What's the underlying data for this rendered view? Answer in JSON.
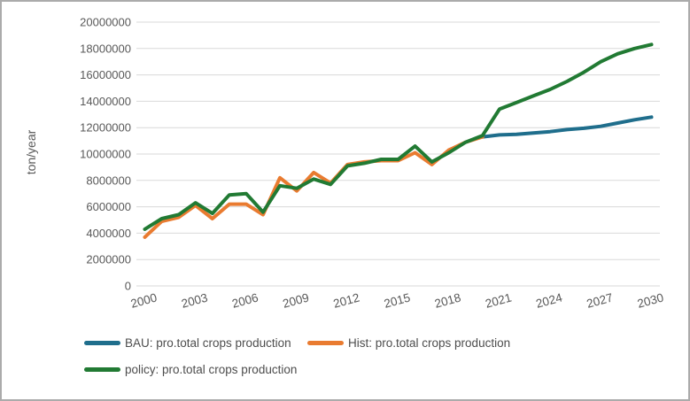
{
  "window": {
    "background_color": "#FFFFFF",
    "border_color": "#ABABAB"
  },
  "chart_data": {
    "type": "line",
    "title": "",
    "xlabel": "",
    "ylabel": "ton/year",
    "ylim": [
      0,
      20000000
    ],
    "grid": "horizontal",
    "gridline_color": "#D9D9D9",
    "axis_text_color": "#595959",
    "legend_position": "bottom-left",
    "x": [
      2000,
      2001,
      2002,
      2003,
      2004,
      2005,
      2006,
      2007,
      2008,
      2009,
      2010,
      2011,
      2012,
      2013,
      2014,
      2015,
      2016,
      2017,
      2018,
      2019,
      2020,
      2021,
      2022,
      2023,
      2024,
      2025,
      2026,
      2027,
      2028,
      2029,
      2030
    ],
    "x_tick_labels": [
      "2000",
      "2003",
      "2006",
      "2009",
      "2012",
      "2015",
      "2018",
      "2021",
      "2024",
      "2027",
      "2030"
    ],
    "y_ticks": [
      0,
      2000000,
      4000000,
      6000000,
      8000000,
      10000000,
      12000000,
      14000000,
      16000000,
      18000000,
      20000000
    ],
    "y_tick_labels": [
      "0",
      "2000000",
      "4000000",
      "6000000",
      "8000000",
      "10000000",
      "12000000",
      "14000000",
      "16000000",
      "18000000",
      "20000000"
    ],
    "series": [
      {
        "name": "BAU: pro.total crops production",
        "color": "#1F6E8C",
        "values": [
          null,
          null,
          null,
          null,
          null,
          null,
          null,
          null,
          null,
          null,
          null,
          null,
          null,
          null,
          null,
          null,
          null,
          null,
          null,
          null,
          11300000,
          11450000,
          11500000,
          11600000,
          11700000,
          11850000,
          11950000,
          12100000,
          12350000,
          12600000,
          12800000
        ]
      },
      {
        "name": "Hist: pro.total crops production",
        "color": "#E97B30",
        "values": [
          3700000,
          4900000,
          5200000,
          6100000,
          5100000,
          6200000,
          6200000,
          5400000,
          8200000,
          7200000,
          8600000,
          7800000,
          9200000,
          9400000,
          9500000,
          9500000,
          10100000,
          9200000,
          10300000,
          10900000,
          11300000,
          null,
          null,
          null,
          null,
          null,
          null,
          null,
          null,
          null,
          null
        ]
      },
      {
        "name": "policy: pro.total crops production",
        "color": "#217A33",
        "values": [
          4300000,
          5100000,
          5400000,
          6300000,
          5500000,
          6900000,
          7000000,
          5600000,
          7600000,
          7400000,
          8100000,
          7700000,
          9100000,
          9300000,
          9600000,
          9600000,
          10600000,
          9400000,
          10100000,
          10900000,
          11400000,
          13400000,
          13900000,
          14400000,
          14900000,
          15500000,
          16200000,
          17000000,
          17600000,
          18000000,
          18300000
        ]
      }
    ]
  }
}
